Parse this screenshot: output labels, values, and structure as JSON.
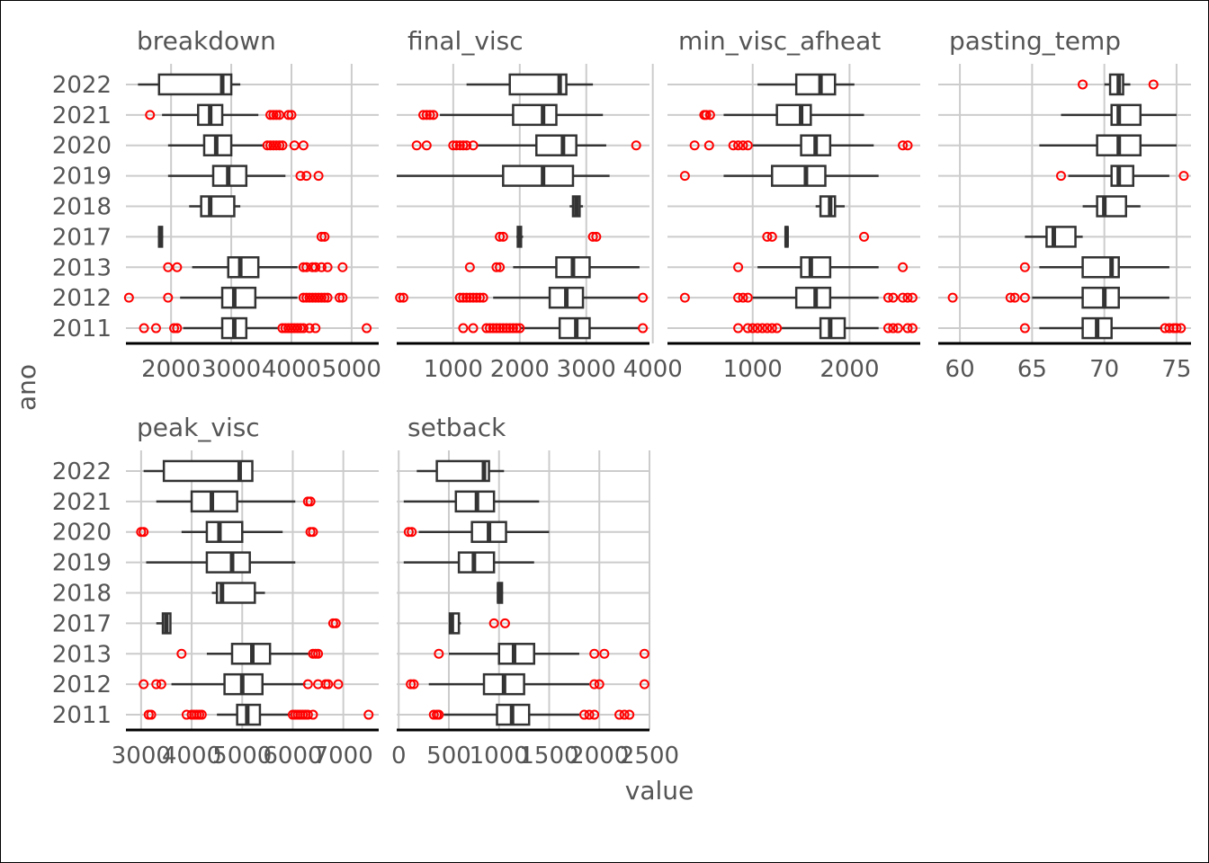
{
  "chart_data": {
    "type": "boxplot",
    "orientation": "horizontal",
    "facet_layout": "free x scales, 4 columns",
    "xlabel": "value",
    "ylabel": "ano",
    "categories": [
      "2022",
      "2021",
      "2020",
      "2019",
      "2018",
      "2017",
      "2013",
      "2012",
      "2011"
    ],
    "grid": true,
    "colors": {
      "box": "#333333",
      "outlier": "#ff0000",
      "grid": "#cccccc",
      "strip_text": "#555555"
    },
    "panels": [
      {
        "name": "breakdown",
        "xlim": [
          1250,
          5450
        ],
        "ticks": [
          2000,
          3000,
          4000,
          5000
        ],
        "tick_labels": [
          "2000",
          "3000",
          "4000",
          "5000"
        ],
        "boxes": [
          {
            "year": "2022",
            "whisker_low": 1450,
            "q1": 1800,
            "median": 2850,
            "q3": 3000,
            "whisker_high": 3150,
            "outliers": []
          },
          {
            "year": "2021",
            "whisker_low": 1850,
            "q1": 2450,
            "median": 2650,
            "q3": 2850,
            "whisker_high": 3450,
            "outliers": [
              1650,
              3650,
              3700,
              3750,
              3800,
              3950,
              4000
            ]
          },
          {
            "year": "2020",
            "whisker_low": 1950,
            "q1": 2550,
            "median": 2750,
            "q3": 3000,
            "whisker_high": 3550,
            "outliers": [
              3600,
              3650,
              3700,
              3750,
              3800,
              3850,
              4050,
              4200
            ]
          },
          {
            "year": "2019",
            "whisker_low": 1950,
            "q1": 2700,
            "median": 2950,
            "q3": 3250,
            "whisker_high": 3900,
            "outliers": [
              4150,
              4250,
              4450
            ]
          },
          {
            "year": "2018",
            "whisker_low": 2300,
            "q1": 2500,
            "median": 2650,
            "q3": 3050,
            "whisker_high": 3150,
            "outliers": []
          },
          {
            "year": "2017",
            "whisker_low": 1780,
            "q1": 1800,
            "median": 1820,
            "q3": 1850,
            "whisker_high": 1870,
            "outliers": [
              4500,
              4550
            ]
          },
          {
            "year": "2013",
            "whisker_low": 2350,
            "q1": 2950,
            "median": 3150,
            "q3": 3450,
            "whisker_high": 4100,
            "outliers": [
              1950,
              2100,
              4200,
              4250,
              4350,
              4400,
              4500,
              4600,
              4850
            ]
          },
          {
            "year": "2012",
            "whisker_low": 2150,
            "q1": 2850,
            "median": 3050,
            "q3": 3400,
            "whisker_high": 4100,
            "outliers": [
              1300,
              1950,
              4200,
              4250,
              4300,
              4350,
              4400,
              4450,
              4500,
              4550,
              4600,
              4800,
              4850
            ]
          },
          {
            "year": "2011",
            "whisker_low": 2200,
            "q1": 2850,
            "median": 3050,
            "q3": 3250,
            "whisker_high": 3800,
            "outliers": [
              1550,
              1750,
              2050,
              2100,
              3850,
              3900,
              3950,
              4000,
              4050,
              4100,
              4150,
              4200,
              4300,
              4400,
              5250
            ]
          }
        ]
      },
      {
        "name": "final_visc",
        "xlim": [
          150,
          3950
        ],
        "ticks": [
          1000,
          2000,
          3000,
          4000
        ],
        "tick_labels": [
          "1000",
          "2000",
          "3000",
          "4000"
        ],
        "boxes": [
          {
            "year": "2022",
            "whisker_low": 1200,
            "q1": 1850,
            "median": 2600,
            "q3": 2700,
            "whisker_high": 3100,
            "outliers": []
          },
          {
            "year": "2021",
            "whisker_low": 800,
            "q1": 1900,
            "median": 2350,
            "q3": 2550,
            "whisker_high": 3250,
            "outliers": [
              550,
              600,
              650,
              700
            ]
          },
          {
            "year": "2020",
            "whisker_low": 1350,
            "q1": 2250,
            "median": 2650,
            "q3": 2850,
            "whisker_high": 3300,
            "outliers": [
              450,
              600,
              1000,
              1050,
              1100,
              1150,
              1200,
              1300,
              3750
            ]
          },
          {
            "year": "2019",
            "whisker_low": 150,
            "q1": 1750,
            "median": 2350,
            "q3": 2800,
            "whisker_high": 3350,
            "outliers": []
          },
          {
            "year": "2018",
            "whisker_low": 2750,
            "q1": 2800,
            "median": 2850,
            "q3": 2900,
            "whisker_high": 2950,
            "outliers": []
          },
          {
            "year": "2017",
            "whisker_low": 1950,
            "q1": 1970,
            "median": 2000,
            "q3": 2020,
            "whisker_high": 2050,
            "outliers": [
              1700,
              1750,
              3100,
              3150
            ]
          },
          {
            "year": "2013",
            "whisker_low": 1900,
            "q1": 2550,
            "median": 2800,
            "q3": 3050,
            "whisker_high": 3800,
            "outliers": [
              1250,
              1650,
              1700
            ]
          },
          {
            "year": "2012",
            "whisker_low": 1600,
            "q1": 2450,
            "median": 2700,
            "q3": 2950,
            "whisker_high": 3800,
            "outliers": [
              200,
              250,
              1100,
              1150,
              1200,
              1250,
              1300,
              1350,
              1400,
              1450,
              3850
            ]
          },
          {
            "year": "2011",
            "whisker_low": 2000,
            "q1": 2600,
            "median": 2850,
            "q3": 3050,
            "whisker_high": 3800,
            "outliers": [
              1150,
              1300,
              1500,
              1550,
              1600,
              1650,
              1700,
              1750,
              1800,
              1850,
              1900,
              1950,
              2000,
              3850
            ]
          }
        ]
      },
      {
        "name": "min_visc_afheat",
        "xlim": [
          120,
          2730
        ],
        "ticks": [
          1000,
          2000
        ],
        "tick_labels": [
          "1000",
          "2000"
        ],
        "boxes": [
          {
            "year": "2022",
            "whisker_low": 1050,
            "q1": 1450,
            "median": 1700,
            "q3": 1850,
            "whisker_high": 2050,
            "outliers": []
          },
          {
            "year": "2021",
            "whisker_low": 700,
            "q1": 1250,
            "median": 1500,
            "q3": 1600,
            "whisker_high": 2150,
            "outliers": [
              500,
              520,
              560
            ]
          },
          {
            "year": "2020",
            "whisker_low": 1000,
            "q1": 1500,
            "median": 1650,
            "q3": 1800,
            "whisker_high": 2250,
            "outliers": [
              400,
              550,
              800,
              850,
              900,
              950,
              2550,
              2600
            ]
          },
          {
            "year": "2019",
            "whisker_low": 700,
            "q1": 1200,
            "median": 1550,
            "q3": 1750,
            "whisker_high": 2300,
            "outliers": [
              300
            ]
          },
          {
            "year": "2018",
            "whisker_low": 1650,
            "q1": 1700,
            "median": 1800,
            "q3": 1850,
            "whisker_high": 1950,
            "outliers": []
          },
          {
            "year": "2017",
            "whisker_low": 1330,
            "q1": 1340,
            "median": 1350,
            "q3": 1360,
            "whisker_high": 1370,
            "outliers": [
              1150,
              1200,
              2150
            ]
          },
          {
            "year": "2013",
            "whisker_low": 1050,
            "q1": 1500,
            "median": 1600,
            "q3": 1800,
            "whisker_high": 2300,
            "outliers": [
              850,
              2550
            ]
          },
          {
            "year": "2012",
            "whisker_low": 1000,
            "q1": 1450,
            "median": 1650,
            "q3": 1800,
            "whisker_high": 2300,
            "outliers": [
              300,
              850,
              900,
              950,
              2400,
              2450,
              2550,
              2600,
              2650
            ]
          },
          {
            "year": "2011",
            "whisker_low": 1300,
            "q1": 1700,
            "median": 1800,
            "q3": 1950,
            "whisker_high": 2300,
            "outliers": [
              850,
              950,
              1000,
              1050,
              1100,
              1150,
              1200,
              1250,
              2400,
              2450,
              2500,
              2600,
              2650
            ]
          }
        ]
      },
      {
        "name": "pasting_temp",
        "xlim": [
          58.5,
          76.0
        ],
        "ticks": [
          60,
          65,
          70,
          75
        ],
        "tick_labels": [
          "60",
          "65",
          "70",
          "75"
        ],
        "boxes": [
          {
            "year": "2022",
            "whisker_low": 70.0,
            "q1": 70.4,
            "median": 71.0,
            "q3": 71.3,
            "whisker_high": 71.8,
            "outliers": [
              68.5,
              73.4
            ]
          },
          {
            "year": "2021",
            "whisker_low": 67.0,
            "q1": 70.5,
            "median": 71.0,
            "q3": 72.5,
            "whisker_high": 75.0,
            "outliers": []
          },
          {
            "year": "2020",
            "whisker_low": 65.5,
            "q1": 69.5,
            "median": 71.0,
            "q3": 72.5,
            "whisker_high": 75.0,
            "outliers": []
          },
          {
            "year": "2019",
            "whisker_low": 67.5,
            "q1": 70.5,
            "median": 71.0,
            "q3": 72.0,
            "whisker_high": 74.5,
            "outliers": [
              67.0,
              75.5
            ]
          },
          {
            "year": "2018",
            "whisker_low": 68.5,
            "q1": 69.5,
            "median": 70.0,
            "q3": 71.5,
            "whisker_high": 72.5,
            "outliers": []
          },
          {
            "year": "2017",
            "whisker_low": 64.5,
            "q1": 66.0,
            "median": 66.5,
            "q3": 68.0,
            "whisker_high": 68.5,
            "outliers": []
          },
          {
            "year": "2013",
            "whisker_low": 65.5,
            "q1": 68.5,
            "median": 70.5,
            "q3": 71.0,
            "whisker_high": 74.5,
            "outliers": [
              64.5
            ]
          },
          {
            "year": "2012",
            "whisker_low": 65.0,
            "q1": 68.5,
            "median": 70.0,
            "q3": 71.0,
            "whisker_high": 74.5,
            "outliers": [
              59.5,
              63.5,
              63.8,
              64.5
            ]
          },
          {
            "year": "2011",
            "whisker_low": 65.5,
            "q1": 68.5,
            "median": 69.5,
            "q3": 70.5,
            "whisker_high": 74.0,
            "outliers": [
              64.5,
              74.2,
              74.5,
              74.8,
              75.0,
              75.3
            ]
          }
        ]
      },
      {
        "name": "peak_visc",
        "xlim": [
          2700,
          7700
        ],
        "ticks": [
          3000,
          4000,
          5000,
          6000,
          7000
        ],
        "tick_labels": [
          "3000",
          "4000",
          "5000",
          "6000",
          "7000"
        ],
        "boxes": [
          {
            "year": "2022",
            "whisker_low": 3050,
            "q1": 3450,
            "median": 4950,
            "q3": 5200,
            "whisker_high": 5200,
            "outliers": []
          },
          {
            "year": "2021",
            "whisker_low": 3300,
            "q1": 4000,
            "median": 4400,
            "q3": 4900,
            "whisker_high": 6050,
            "outliers": [
              6300,
              6350
            ]
          },
          {
            "year": "2020",
            "whisker_low": 3800,
            "q1": 4300,
            "median": 4550,
            "q3": 5000,
            "whisker_high": 5800,
            "outliers": [
              3000,
              3050,
              6350,
              6400
            ]
          },
          {
            "year": "2019",
            "whisker_low": 3100,
            "q1": 4300,
            "median": 4800,
            "q3": 5150,
            "whisker_high": 6050,
            "outliers": []
          },
          {
            "year": "2018",
            "whisker_low": 4400,
            "q1": 4500,
            "median": 4600,
            "q3": 5250,
            "whisker_high": 5450,
            "outliers": []
          },
          {
            "year": "2017",
            "whisker_low": 3300,
            "q1": 3430,
            "median": 3500,
            "q3": 3580,
            "whisker_high": 3580,
            "outliers": [
              6800,
              6850
            ]
          },
          {
            "year": "2013",
            "whisker_low": 4300,
            "q1": 4800,
            "median": 5200,
            "q3": 5550,
            "whisker_high": 6350,
            "outliers": [
              3800,
              6400,
              6450,
              6500
            ]
          },
          {
            "year": "2012",
            "whisker_low": 3600,
            "q1": 4650,
            "median": 5000,
            "q3": 5400,
            "whisker_high": 6250,
            "outliers": [
              3050,
              3300,
              3400,
              6300,
              6500,
              6650,
              6700,
              6900
            ]
          },
          {
            "year": "2011",
            "whisker_low": 4500,
            "q1": 4900,
            "median": 5100,
            "q3": 5350,
            "whisker_high": 5950,
            "outliers": [
              3150,
              3200,
              3900,
              4000,
              4050,
              4100,
              4150,
              4200,
              6000,
              6050,
              6100,
              6150,
              6200,
              6250,
              6300,
              6400,
              7500
            ]
          }
        ]
      },
      {
        "name": "setback",
        "xlim": [
          -20,
          2500
        ],
        "ticks": [
          0,
          500,
          1000,
          1500,
          2000,
          2500
        ],
        "tick_labels": [
          "0",
          "500",
          "1000",
          "1500",
          "2000",
          "2500"
        ],
        "boxes": [
          {
            "year": "2022",
            "whisker_low": 180,
            "q1": 380,
            "median": 850,
            "q3": 900,
            "whisker_high": 1050,
            "outliers": []
          },
          {
            "year": "2021",
            "whisker_low": 50,
            "q1": 570,
            "median": 780,
            "q3": 950,
            "whisker_high": 1400,
            "outliers": []
          },
          {
            "year": "2020",
            "whisker_low": 200,
            "q1": 730,
            "median": 900,
            "q3": 1070,
            "whisker_high": 1500,
            "outliers": [
              100,
              130
            ]
          },
          {
            "year": "2019",
            "whisker_low": 50,
            "q1": 600,
            "median": 750,
            "q3": 950,
            "whisker_high": 1350,
            "outliers": []
          },
          {
            "year": "2018",
            "whisker_low": 980,
            "q1": 990,
            "median": 1000,
            "q3": 1030,
            "whisker_high": 1040,
            "outliers": []
          },
          {
            "year": "2017",
            "whisker_low": 500,
            "q1": 510,
            "median": 530,
            "q3": 600,
            "whisker_high": 620,
            "outliers": [
              950,
              1060
            ]
          },
          {
            "year": "2013",
            "whisker_low": 500,
            "q1": 1000,
            "median": 1150,
            "q3": 1350,
            "whisker_high": 1800,
            "outliers": [
              400,
              1950,
              2050,
              2450
            ]
          },
          {
            "year": "2012",
            "whisker_low": 300,
            "q1": 850,
            "median": 1050,
            "q3": 1250,
            "whisker_high": 1900,
            "outliers": [
              120,
              150,
              1950,
              2000,
              2450
            ]
          },
          {
            "year": "2011",
            "whisker_low": 450,
            "q1": 980,
            "median": 1130,
            "q3": 1300,
            "whisker_high": 1800,
            "outliers": [
              350,
              380,
              400,
              1850,
              1900,
              1950,
              2200,
              2250,
              2300
            ]
          }
        ]
      }
    ]
  }
}
